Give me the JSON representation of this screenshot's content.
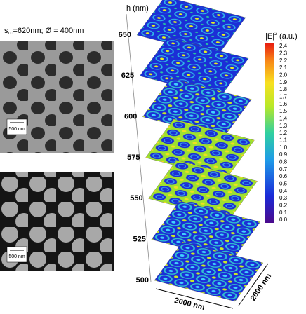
{
  "sem": {
    "parameters": {
      "symbol": "s",
      "subscript": "cc",
      "text": "=620nm; Ø = 400nm"
    },
    "images": [
      {
        "scale_bar": "500 nm"
      },
      {
        "scale_bar": "500 nm"
      }
    ]
  },
  "field_maps": {
    "height_axis_title": "h (nm)",
    "heights": [
      650,
      625,
      600,
      575,
      550,
      525,
      500
    ],
    "width_label": "2000 nm",
    "depth_label": "2000 nm"
  },
  "colorbar": {
    "title": {
      "symbol": "|E|",
      "superscript": "2",
      "text": " (a.u.)"
    },
    "ticks": [
      "2.4",
      "2.3",
      "2.2",
      "2.1",
      "2.0",
      "1.9",
      "1.8",
      "1.7",
      "1.6",
      "1.5",
      "1.4",
      "1.3",
      "1.2",
      "1.1",
      "1.0",
      "0.9",
      "0.8",
      "0.7",
      "0.6",
      "0.5",
      "0.4",
      "0.3",
      "0.2",
      "0.1",
      "0.0"
    ]
  }
}
